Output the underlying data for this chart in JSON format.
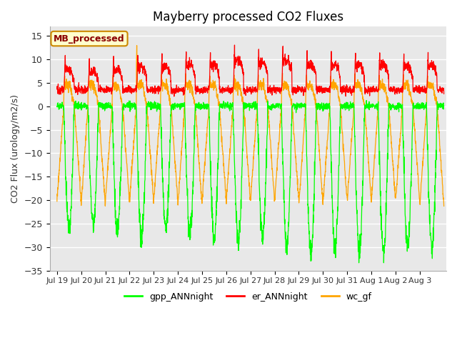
{
  "title": "Mayberry processed CO2 Fluxes",
  "ylabel": "CO2 Flux (urology/m2/s)",
  "ylim": [
    -35,
    17
  ],
  "yticks": [
    -35,
    -30,
    -25,
    -20,
    -15,
    -10,
    -5,
    0,
    5,
    10,
    15
  ],
  "colors": {
    "gpp": "#00FF00",
    "er": "#FF0000",
    "wc": "#FFA500"
  },
  "legend_label": "MB_processed",
  "legend_box_color": "#FFFFCC",
  "legend_box_edge": "#CC8800",
  "bg_color": "#E8E8E8",
  "line_labels": [
    "gpp_ANNnight",
    "er_ANNnight",
    "wc_gf"
  ],
  "n_days": 16,
  "pts_per_day": 144,
  "day_amplitudes_gpp": [
    26,
    25,
    27,
    28,
    26,
    27,
    28,
    29,
    28,
    30,
    31,
    30,
    31,
    31,
    30,
    30
  ],
  "day_peaks_er": [
    8,
    7.5,
    8,
    8.5,
    8.5,
    9,
    9,
    10,
    9.5,
    10,
    9,
    9,
    9,
    9,
    8.5,
    9
  ],
  "wc_night_depth": [
    -20,
    -21,
    -20,
    -20,
    -20,
    -21,
    -20,
    -20,
    -20,
    -20,
    -21,
    -20,
    -20,
    -20,
    -20,
    -21
  ],
  "tick_labels": [
    "Jul 19",
    "Jul 20",
    "Jul 21",
    "Jul 22",
    "Jul 23",
    "Jul 24",
    "Jul 25",
    "Jul 26",
    "Jul 27",
    "Jul 28",
    "Jul 29",
    "Jul 30",
    "Jul 31",
    "Aug 1",
    "Aug 2",
    "Aug 3"
  ]
}
